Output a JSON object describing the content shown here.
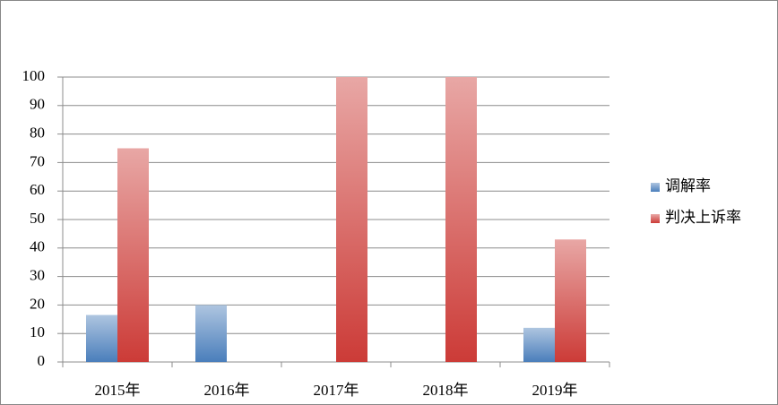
{
  "chart_data": {
    "type": "bar",
    "categories": [
      "2015年",
      "2016年",
      "2017年",
      "2018年",
      "2019年"
    ],
    "series": [
      {
        "name": "调解率",
        "color": "#4a7ebb",
        "values": [
          16.5,
          20,
          0,
          0,
          12
        ]
      },
      {
        "name": "判决上诉率",
        "color": "#cc3b37",
        "values": [
          75,
          0,
          100,
          100,
          43
        ]
      }
    ],
    "ylim": [
      0,
      100
    ],
    "yticks": [
      0,
      10,
      20,
      30,
      40,
      50,
      60,
      70,
      80,
      90,
      100
    ],
    "grid": true,
    "legend": "right"
  }
}
